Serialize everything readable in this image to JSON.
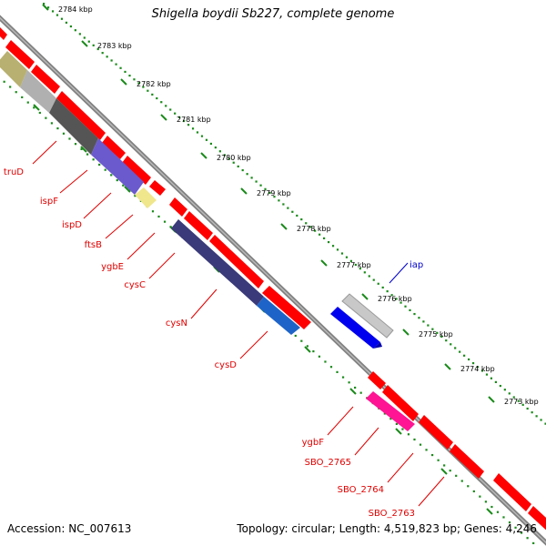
{
  "title": "Shigella boydii Sb227, complete genome",
  "footer": {
    "accession": "Accession: NC_007613",
    "topology": "Topology: circular; Length: 4,519,823 bp; Genes: 4,246"
  },
  "colors": {
    "backbone": "#808080",
    "tick": "#1a8a1a",
    "cds": "#ff0000",
    "label": "#e00000",
    "label_highlight": "#0000cc"
  },
  "ruler": [
    {
      "label": "2784 kbp"
    },
    {
      "label": "2783 kbp"
    },
    {
      "label": "2782 kbp"
    },
    {
      "label": "2781 kbp"
    },
    {
      "label": "2780 kbp"
    },
    {
      "label": "2779 kbp"
    },
    {
      "label": "2778 kbp"
    },
    {
      "label": "2777 kbp"
    },
    {
      "label": "2776 kbp"
    },
    {
      "label": "2775 kbp"
    },
    {
      "label": "2774 kbp"
    },
    {
      "label": "2773 kbp"
    }
  ],
  "genes": [
    {
      "name": "iap",
      "highlight": true
    },
    {
      "name": "truD"
    },
    {
      "name": "ispF"
    },
    {
      "name": "ispD"
    },
    {
      "name": "ftsB"
    },
    {
      "name": "ygbE"
    },
    {
      "name": "cysC"
    },
    {
      "name": "cysN"
    },
    {
      "name": "cysD"
    },
    {
      "name": "ygbF"
    },
    {
      "name": "SBO_2765"
    },
    {
      "name": "SBO_2764"
    },
    {
      "name": "SBO_2763"
    }
  ]
}
